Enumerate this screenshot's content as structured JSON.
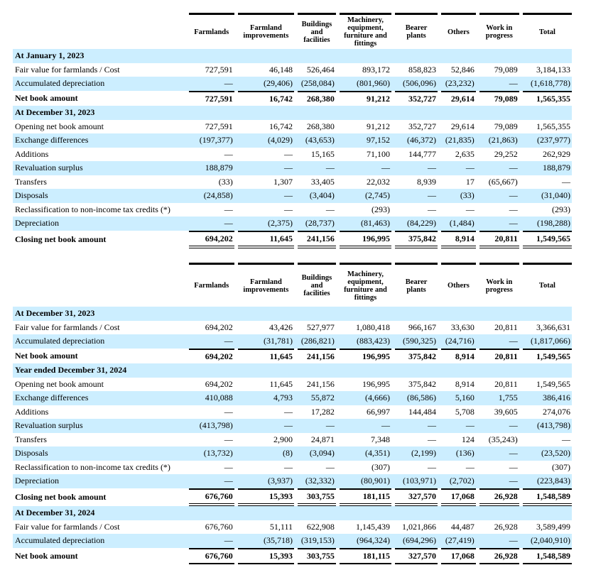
{
  "columns": [
    "Farmlands",
    "Farmland improvements",
    "Buildings and facilities",
    "Machinery, equipment, furniture and fittings",
    "Bearer plants",
    "Others",
    "Work in progress",
    "Total"
  ],
  "colors": {
    "row_highlight": "#cceeff",
    "text": "#000000"
  },
  "tables": [
    {
      "rows": [
        {
          "label": "At January 1, 2023",
          "type": "section",
          "values": []
        },
        {
          "label": "Fair value for farmlands / Cost",
          "type": "normal",
          "values": [
            "727,591",
            "46,148",
            "526,464",
            "893,172",
            "858,823",
            "52,846",
            "79,089",
            "3,184,133"
          ]
        },
        {
          "label": "Accumulated depreciation",
          "type": "normal",
          "values": [
            "—",
            "(29,406)",
            "(258,084)",
            "(801,960)",
            "(506,096)",
            "(23,232)",
            "—",
            "(1,618,778)"
          ]
        },
        {
          "label": "Net book amount",
          "type": "subtotal",
          "values": [
            "727,591",
            "16,742",
            "268,380",
            "91,212",
            "352,727",
            "29,614",
            "79,089",
            "1,565,355"
          ]
        },
        {
          "label": "At December 31, 2023",
          "type": "section",
          "values": []
        },
        {
          "label": "Opening net book amount",
          "type": "normal",
          "values": [
            "727,591",
            "16,742",
            "268,380",
            "91,212",
            "352,727",
            "29,614",
            "79,089",
            "1,565,355"
          ]
        },
        {
          "label": "Exchange differences",
          "type": "normal",
          "values": [
            "(197,377)",
            "(4,029)",
            "(43,653)",
            "97,152",
            "(46,372)",
            "(21,835)",
            "(21,863)",
            "(237,977)"
          ]
        },
        {
          "label": "Additions",
          "type": "normal",
          "values": [
            "—",
            "—",
            "15,165",
            "71,100",
            "144,777",
            "2,635",
            "29,252",
            "262,929"
          ]
        },
        {
          "label": "Revaluation surplus",
          "type": "normal",
          "values": [
            "188,879",
            "—",
            "—",
            "—",
            "—",
            "—",
            "—",
            "188,879"
          ]
        },
        {
          "label": "Transfers",
          "type": "normal",
          "values": [
            "(33)",
            "1,307",
            "33,405",
            "22,032",
            "8,939",
            "17",
            "(65,667)",
            "—"
          ]
        },
        {
          "label": "Disposals",
          "type": "normal",
          "values": [
            "(24,858)",
            "—",
            "(3,404)",
            "(2,745)",
            "—",
            "(33)",
            "—",
            "(31,040)"
          ]
        },
        {
          "label": "Reclassification to non-income tax credits (*)",
          "type": "normal",
          "values": [
            "—",
            "—",
            "—",
            "(293)",
            "—",
            "—",
            "—",
            "(293)"
          ]
        },
        {
          "label": "Depreciation",
          "type": "normal",
          "values": [
            "—",
            "(2,375)",
            "(28,737)",
            "(81,463)",
            "(84,229)",
            "(1,484)",
            "—",
            "(198,288)"
          ]
        },
        {
          "label": "Closing net book amount",
          "type": "total",
          "values": [
            "694,202",
            "11,645",
            "241,156",
            "196,995",
            "375,842",
            "8,914",
            "20,811",
            "1,549,565"
          ]
        }
      ]
    },
    {
      "rows": [
        {
          "label": "At December 31, 2023",
          "type": "section",
          "values": []
        },
        {
          "label": "Fair value for farmlands / Cost",
          "type": "normal",
          "values": [
            "694,202",
            "43,426",
            "527,977",
            "1,080,418",
            "966,167",
            "33,630",
            "20,811",
            "3,366,631"
          ]
        },
        {
          "label": "Accumulated depreciation",
          "type": "normal",
          "values": [
            "—",
            "(31,781)",
            "(286,821)",
            "(883,423)",
            "(590,325)",
            "(24,716)",
            "—",
            "(1,817,066)"
          ]
        },
        {
          "label": "Net book amount",
          "type": "subtotal",
          "values": [
            "694,202",
            "11,645",
            "241,156",
            "196,995",
            "375,842",
            "8,914",
            "20,811",
            "1,549,565"
          ]
        },
        {
          "label": "Year ended December 31, 2024",
          "type": "section",
          "values": []
        },
        {
          "label": "Opening net book amount",
          "type": "normal",
          "values": [
            "694,202",
            "11,645",
            "241,156",
            "196,995",
            "375,842",
            "8,914",
            "20,811",
            "1,549,565"
          ]
        },
        {
          "label": "Exchange differences",
          "type": "normal",
          "values": [
            "410,088",
            "4,793",
            "55,872",
            "(4,666)",
            "(86,586)",
            "5,160",
            "1,755",
            "386,416"
          ]
        },
        {
          "label": "Additions",
          "type": "normal",
          "values": [
            "—",
            "—",
            "17,282",
            "66,997",
            "144,484",
            "5,708",
            "39,605",
            "274,076"
          ]
        },
        {
          "label": "Revaluation surplus",
          "type": "normal",
          "values": [
            "(413,798)",
            "—",
            "—",
            "—",
            "—",
            "—",
            "—",
            "(413,798)"
          ]
        },
        {
          "label": "Transfers",
          "type": "normal",
          "values": [
            "—",
            "2,900",
            "24,871",
            "7,348",
            "—",
            "124",
            "(35,243)",
            "—"
          ]
        },
        {
          "label": "Disposals",
          "type": "normal",
          "values": [
            "(13,732)",
            "(8)",
            "(3,094)",
            "(4,351)",
            "(2,199)",
            "(136)",
            "—",
            "(23,520)"
          ]
        },
        {
          "label": "Reclassification to non-income tax credits (*)",
          "type": "normal",
          "values": [
            "—",
            "—",
            "—",
            "(307)",
            "—",
            "—",
            "—",
            "(307)"
          ]
        },
        {
          "label": "Depreciation",
          "type": "normal",
          "values": [
            "—",
            "(3,937)",
            "(32,332)",
            "(80,901)",
            "(103,971)",
            "(2,702)",
            "—",
            "(223,843)"
          ]
        },
        {
          "label": "Closing net book amount",
          "type": "total",
          "values": [
            "676,760",
            "15,393",
            "303,755",
            "181,115",
            "327,570",
            "17,068",
            "26,928",
            "1,548,589"
          ]
        },
        {
          "label": "At December 31, 2024",
          "type": "section",
          "values": []
        },
        {
          "label": "Fair value for farmlands / Cost",
          "type": "normal",
          "values": [
            "676,760",
            "51,111",
            "622,908",
            "1,145,439",
            "1,021,866",
            "44,487",
            "26,928",
            "3,589,499"
          ]
        },
        {
          "label": "Accumulated depreciation",
          "type": "normal",
          "values": [
            "—",
            "(35,718)",
            "(319,153)",
            "(964,324)",
            "(694,296)",
            "(27,419)",
            "—",
            "(2,040,910)"
          ]
        },
        {
          "label": "Net book amount",
          "type": "final",
          "values": [
            "676,760",
            "15,393",
            "303,755",
            "181,115",
            "327,570",
            "17,068",
            "26,928",
            "1,548,589"
          ]
        }
      ]
    }
  ]
}
